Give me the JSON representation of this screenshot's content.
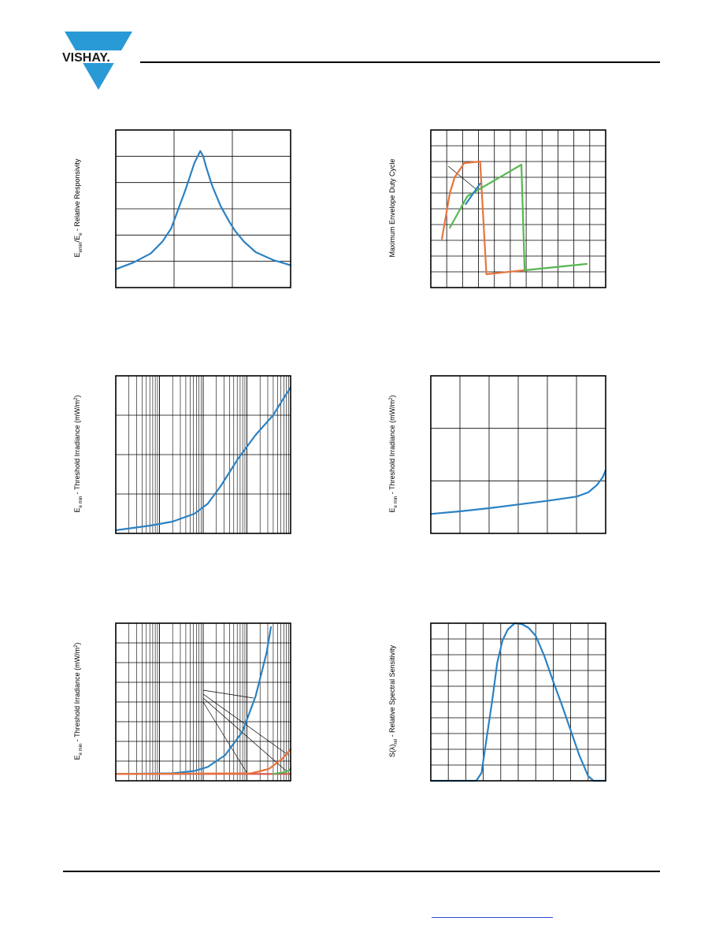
{
  "brand": {
    "name": "VISHAY."
  },
  "colors": {
    "blue": "#2b82c4",
    "orange": "#e8743b",
    "green": "#56b851",
    "red": "#d9534f",
    "grid": "#000000"
  },
  "charts": [
    {
      "id": "c1",
      "ylabel_main": "E",
      "ylabel_sub1": "emin",
      "ylabel_mid": "/E",
      "ylabel_sub2": "e",
      "ylabel_tail": " - Relative Responsivity",
      "chart_data": {
        "type": "line",
        "xlim": [
          0,
          3
        ],
        "ylim": [
          0,
          6
        ],
        "x_grid": [
          1,
          2
        ],
        "y_grid": [
          1,
          2,
          3,
          4,
          5
        ],
        "log_x": false,
        "series": [
          {
            "color": "blue",
            "x": [
              0,
              0.3,
              0.6,
              0.8,
              0.95,
              1.05,
              1.2,
              1.35,
              1.45,
              1.5,
              1.55,
              1.65,
              1.8,
              1.95,
              2.05,
              2.2,
              2.4,
              2.7,
              3.0
            ],
            "y": [
              0.7,
              0.95,
              1.3,
              1.75,
              2.25,
              2.85,
              3.75,
              4.75,
              5.2,
              5.0,
              4.6,
              3.9,
              3.1,
              2.5,
              2.15,
              1.75,
              1.35,
              1.05,
              0.85
            ]
          }
        ]
      }
    },
    {
      "id": "c2",
      "ylabel_main": "Maximum Envelope Duty Cycle",
      "chart_data": {
        "type": "line",
        "xlim": [
          0,
          11
        ],
        "ylim": [
          0,
          10
        ],
        "x_grid": [
          1,
          2,
          3,
          4,
          5,
          6,
          7,
          8,
          9,
          10
        ],
        "y_grid": [
          1,
          2,
          3,
          4,
          5,
          6,
          7,
          8,
          9
        ],
        "log_x": false,
        "series": [
          {
            "color": "orange",
            "x": [
              0.7,
              1.2,
              1.5,
              2.1,
              3.1,
              3.5,
              5.9
            ],
            "y": [
              3.1,
              6.0,
              7.0,
              7.9,
              8.0,
              0.85,
              1.1
            ]
          },
          {
            "color": "green",
            "x": [
              1.2,
              2.3,
              5.7,
              5.9,
              9.8
            ],
            "y": [
              3.8,
              5.8,
              7.8,
              1.1,
              1.5
            ]
          },
          {
            "color": "blue",
            "x": [
              2.2,
              3.1
            ],
            "y": [
              5.3,
              6.6
            ]
          }
        ],
        "annotation_lines": [
          {
            "x1": 1.1,
            "y1": 7.7,
            "x2": 2.9,
            "y2": 6.2
          }
        ]
      }
    },
    {
      "id": "c3",
      "ylabel_main": "E",
      "ylabel_sub1": "e min",
      "ylabel_tail": " - Threshold Irradiance (mW/m",
      "ylabel_sup": "2",
      "ylabel_close": ")",
      "chart_data": {
        "type": "line",
        "xlim": [
          0,
          4
        ],
        "ylim": [
          0,
          4
        ],
        "log_x": true,
        "y_grid": [
          1,
          2,
          3
        ],
        "series": [
          {
            "color": "blue",
            "x": [
              0,
              0.8,
              1.3,
              1.8,
              2.1,
              2.4,
              2.8,
              3.2,
              3.6,
              3.85,
              4.0
            ],
            "y": [
              0.08,
              0.2,
              0.3,
              0.5,
              0.75,
              1.2,
              1.9,
              2.5,
              3.0,
              3.45,
              3.7
            ]
          }
        ]
      }
    },
    {
      "id": "c4",
      "ylabel_main": "E",
      "ylabel_sub1": "e min",
      "ylabel_tail": " - Threshold Irradiance (mW/m",
      "ylabel_sup": "2",
      "ylabel_close": ")",
      "chart_data": {
        "type": "line",
        "xlim": [
          0,
          6
        ],
        "ylim": [
          0,
          3
        ],
        "x_grid": [
          1,
          2,
          3,
          4,
          5
        ],
        "y_grid": [
          1,
          2
        ],
        "log_x": false,
        "series": [
          {
            "color": "blue",
            "x": [
              0,
              1,
              2,
              3,
              4,
              5,
              5.4,
              5.7,
              5.9,
              6.0
            ],
            "y": [
              0.37,
              0.42,
              0.48,
              0.55,
              0.62,
              0.7,
              0.78,
              0.92,
              1.07,
              1.2
            ]
          }
        ]
      }
    },
    {
      "id": "c5",
      "ylabel_main": "E",
      "ylabel_sub1": "e min",
      "ylabel_tail": " - Threshold Irradiance (mW/m",
      "ylabel_sup": "2",
      "ylabel_close": ")",
      "chart_data": {
        "type": "line",
        "xlim": [
          0,
          4
        ],
        "ylim": [
          0,
          8
        ],
        "log_x": true,
        "y_grid": [
          1,
          2,
          3,
          4,
          5,
          6,
          7
        ],
        "series": [
          {
            "color": "blue",
            "x": [
              0,
              1.3,
              1.8,
              2.1,
              2.5,
              2.9,
              3.2,
              3.45,
              3.55
            ],
            "y": [
              0.35,
              0.38,
              0.5,
              0.7,
              1.3,
              2.5,
              4.3,
              6.5,
              7.8
            ]
          },
          {
            "color": "red",
            "x": [
              0,
              3.0,
              4.0
            ],
            "y": [
              0.35,
              0.35,
              0.35
            ]
          },
          {
            "color": "orange",
            "x": [
              0,
              3.1,
              3.5,
              3.8,
              4.0
            ],
            "y": [
              0.35,
              0.38,
              0.6,
              1.1,
              1.6
            ]
          },
          {
            "color": "green",
            "x": [
              3.6,
              3.9,
              4.0
            ],
            "y": [
              0.35,
              0.45,
              0.6
            ]
          }
        ],
        "annotation_lines": [
          {
            "x1": 2.0,
            "y1": 4.6,
            "x2": 3.15,
            "y2": 4.2
          },
          {
            "x1": 2.0,
            "y1": 4.4,
            "x2": 3.95,
            "y2": 1.3
          },
          {
            "x1": 2.0,
            "y1": 4.2,
            "x2": 3.9,
            "y2": 0.5
          },
          {
            "x1": 2.0,
            "y1": 4.0,
            "x2": 3.0,
            "y2": 0.4
          }
        ]
      }
    },
    {
      "id": "c6",
      "ylabel_main": "S(λ)",
      "ylabel_sub1": "rel",
      "ylabel_tail": " - Relative Spectral Sensitivity",
      "chart_data": {
        "type": "line",
        "xlim": [
          0,
          10
        ],
        "ylim": [
          0,
          10
        ],
        "x_grid": [
          1,
          2,
          3,
          4,
          5,
          6,
          7,
          8,
          9
        ],
        "y_grid": [
          1,
          2,
          3,
          4,
          5,
          6,
          7,
          8,
          9
        ],
        "log_x": false,
        "series": [
          {
            "color": "blue",
            "x": [
              0,
              2.6,
              2.9,
              3.1,
              3.5,
              3.8,
              4.1,
              4.4,
              4.8,
              5.2,
              5.6,
              6.0,
              6.5,
              7.0,
              7.5,
              8.0,
              8.5,
              9.0,
              9.3,
              10.0
            ],
            "y": [
              0,
              0,
              0.5,
              2.0,
              5.0,
              7.5,
              8.9,
              9.6,
              10.0,
              9.95,
              9.7,
              9.2,
              7.9,
              6.3,
              4.8,
              3.2,
              1.6,
              0.3,
              0,
              0
            ]
          }
        ]
      }
    }
  ]
}
